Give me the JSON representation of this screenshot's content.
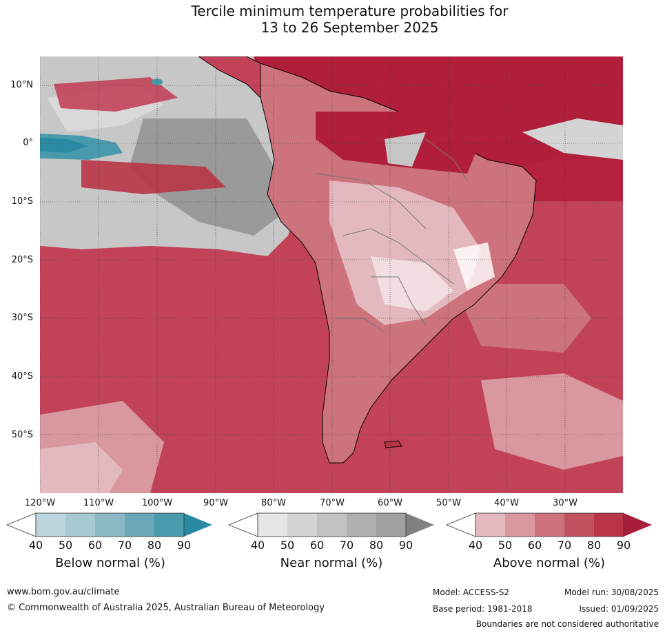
{
  "title": {
    "line1": "Tercile minimum temperature probabilities for",
    "line2": "13 to 26 September 2025"
  },
  "map": {
    "region": "South America",
    "lat_labels": [
      "10°N",
      "0°",
      "10°S",
      "20°S",
      "30°S",
      "40°S",
      "50°S"
    ],
    "lon_labels": [
      "120°W",
      "110°W",
      "100°W",
      "90°W",
      "80°W",
      "70°W",
      "60°W",
      "50°W",
      "40°W",
      "30°W"
    ]
  },
  "colorbars": [
    {
      "name": "Below normal (%)",
      "ticks": [
        "40",
        "50",
        "60",
        "70",
        "80",
        "90"
      ],
      "colors": [
        "#ffffff",
        "#bdd5dc",
        "#a6c8d0",
        "#8ab8c5",
        "#6aa8b8",
        "#4a9aae",
        "#2b8aa3"
      ]
    },
    {
      "name": "Near normal (%)",
      "ticks": [
        "40",
        "50",
        "60",
        "70",
        "80",
        "90"
      ],
      "colors": [
        "#ffffff",
        "#e6e6e6",
        "#d4d4d4",
        "#c2c2c2",
        "#b0b0b0",
        "#a0a0a0",
        "#808080"
      ]
    },
    {
      "name": "Above normal (%)",
      "ticks": [
        "40",
        "50",
        "60",
        "70",
        "80",
        "90"
      ],
      "colors": [
        "#ffffff",
        "#e3b9bf",
        "#d9979f",
        "#cc737e",
        "#c2525f",
        "#b83447",
        "#a81e3a"
      ]
    }
  ],
  "footer": {
    "url": "www.bom.gov.au/climate",
    "copyright": "© Commonwealth of Australia 2025, Australian Bureau of Meteorology",
    "model": "Model: ACCESS-S2",
    "model_run": "Model run: 30/08/2025",
    "base_period": "Base period: 1981-2018",
    "issued": "Issued: 01/09/2025",
    "disclaimer": "Boundaries are not considered authoritative"
  }
}
